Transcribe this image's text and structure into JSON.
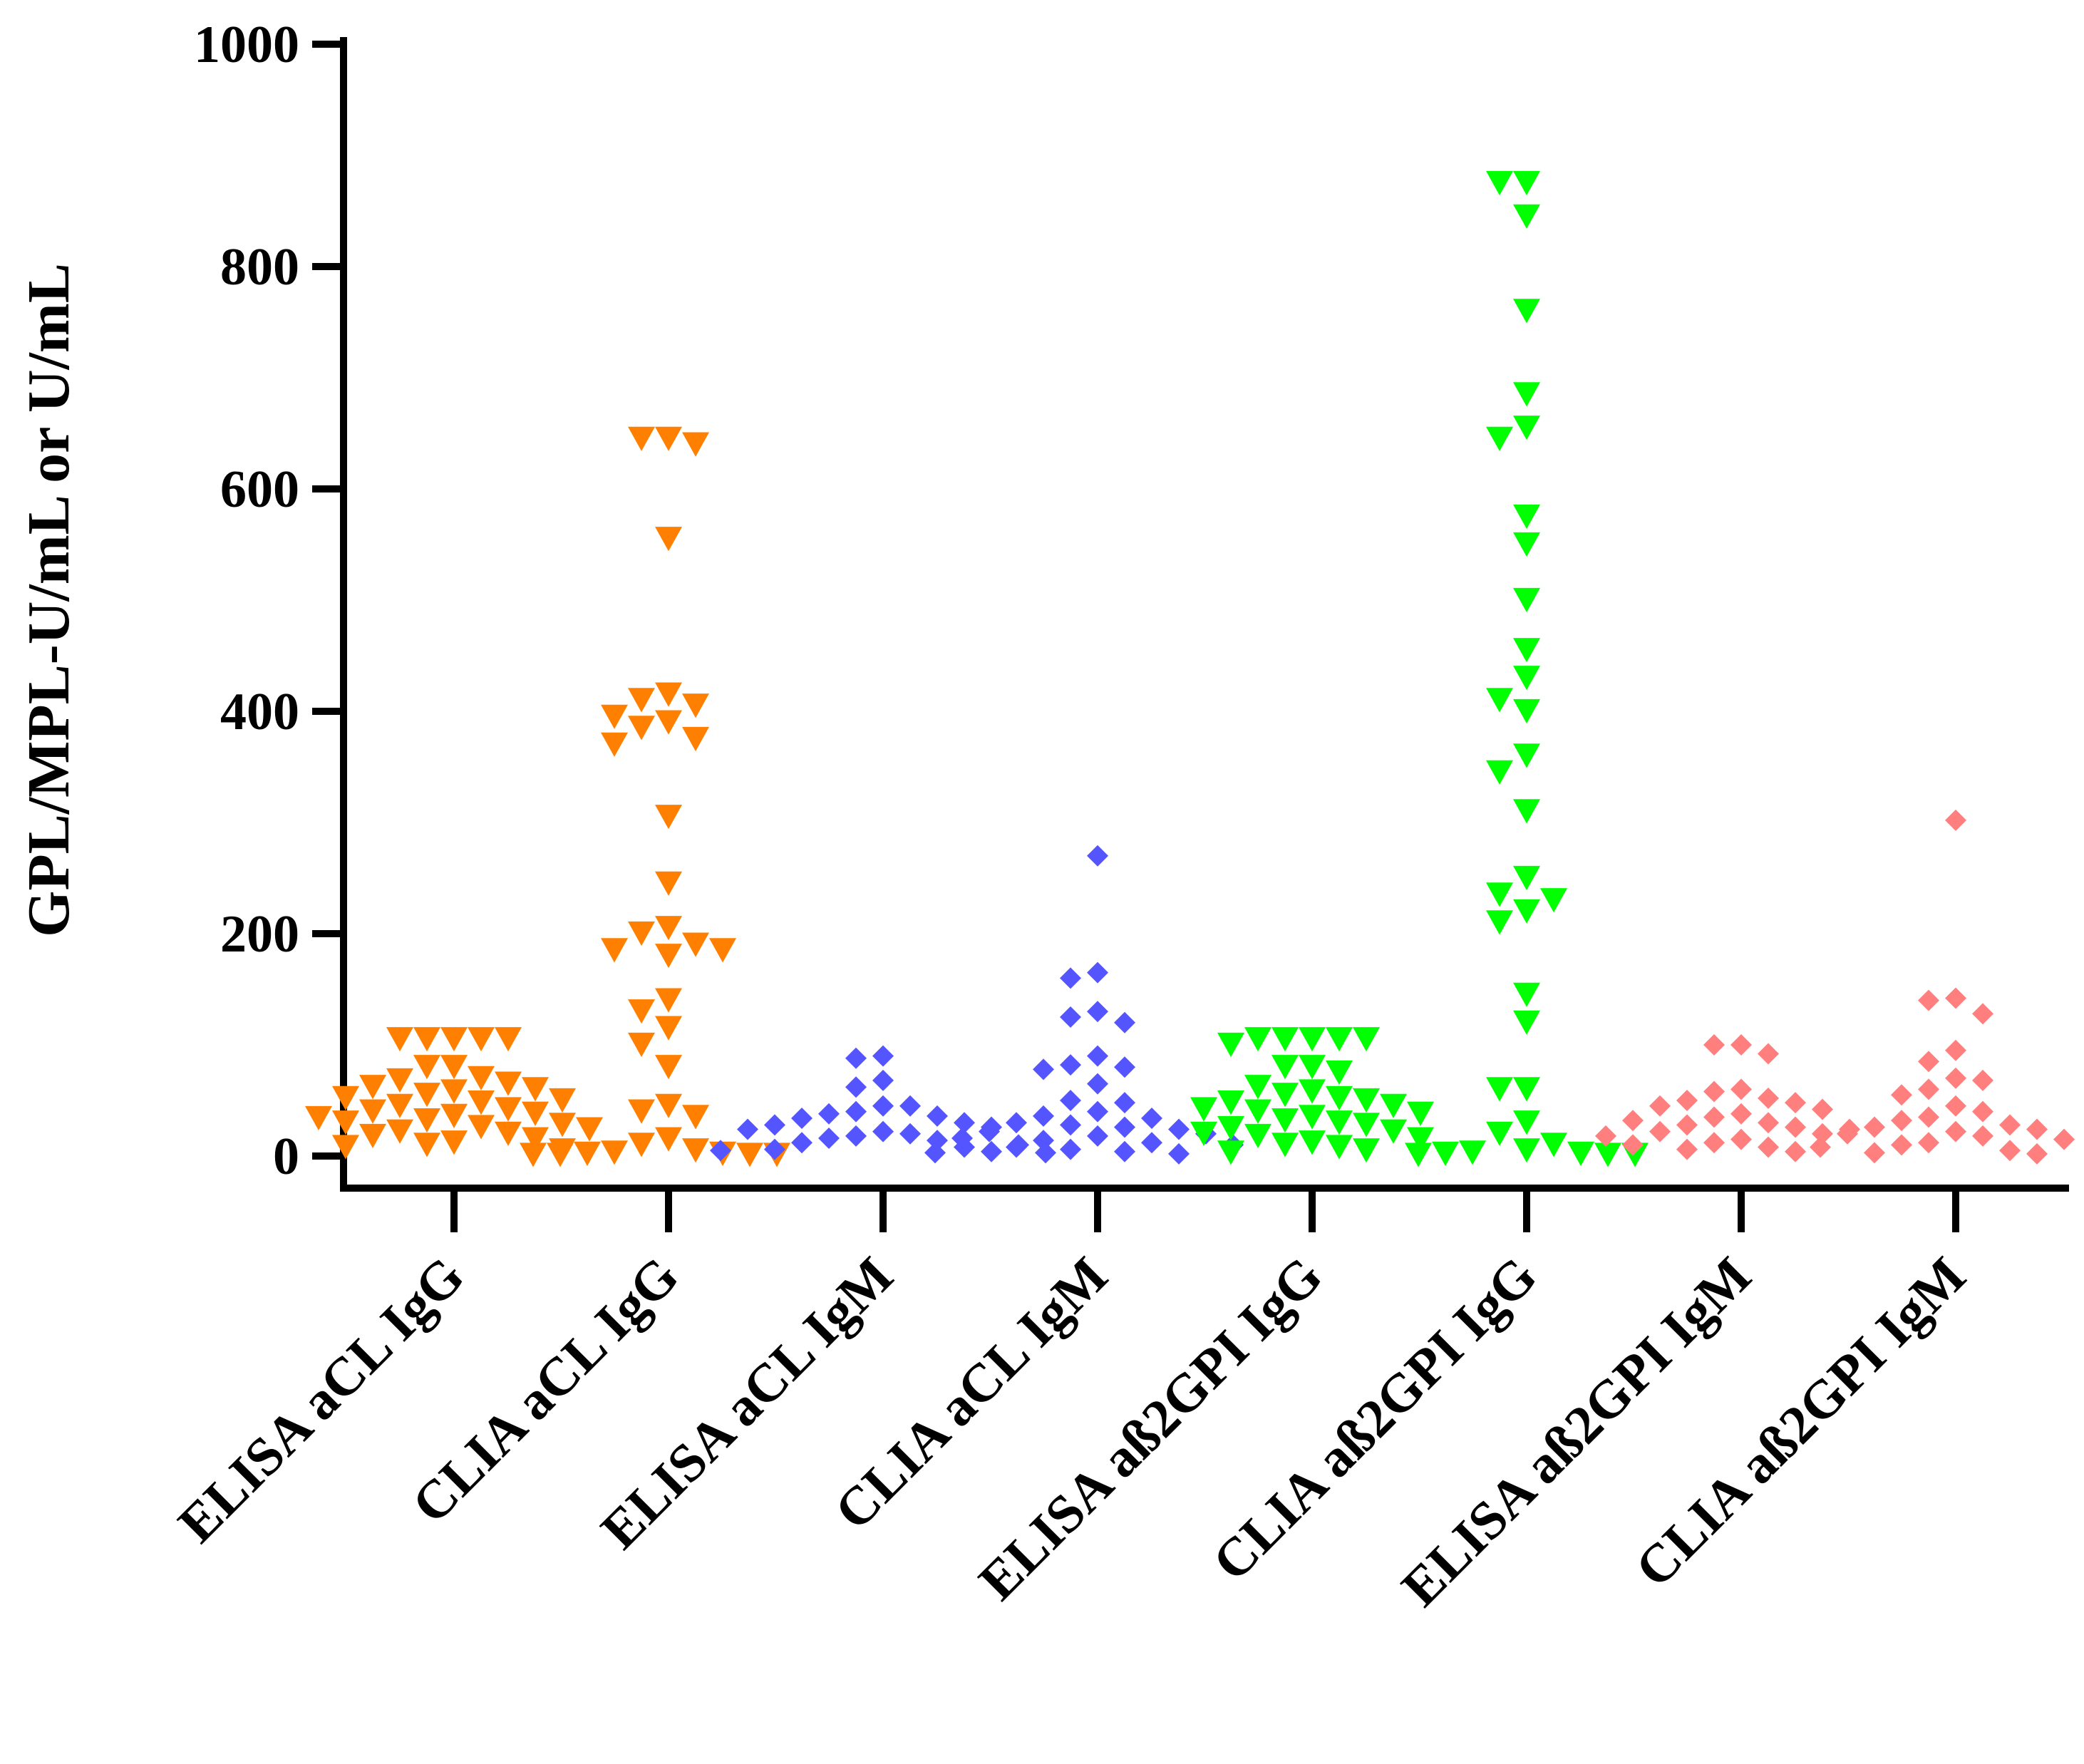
{
  "chart_data": {
    "type": "scatter",
    "title": "",
    "xlabel": "",
    "ylabel": "GPL/MPL-U/mL or U/mL",
    "ylim": [
      0,
      1000
    ],
    "yticks": [
      0,
      200,
      400,
      600,
      800,
      1000
    ],
    "grid": false,
    "categories": [
      "ELISA aCL IgG",
      "CLIA aCL IgG",
      "ELISA aCL IgM",
      "CLIA aCL IgM",
      "ELISA aß2GPI IgG",
      "CLIA aß2GPI IgG",
      "ELISA aß2GPI IgM",
      "CLIA aß2GPI IgM"
    ],
    "series": [
      {
        "name": "ELISA aCL IgG",
        "marker": "triangle-down",
        "color": "#ff8000",
        "values": [
          105,
          105,
          105,
          105,
          105,
          80,
          80,
          70,
          68,
          65,
          62,
          60,
          58,
          55,
          52,
          50,
          48,
          45,
          42,
          40,
          38,
          36,
          34,
          32,
          30,
          28,
          26,
          24,
          22,
          20,
          18,
          15,
          12,
          10,
          8,
          5
        ]
      },
      {
        "name": "CLIA aCL IgG",
        "marker": "triangle-down",
        "color": "#ff8000",
        "values": [
          645,
          640,
          645,
          555,
          410,
          415,
          405,
          395,
          390,
          385,
          375,
          370,
          305,
          245,
          205,
          200,
          190,
          185,
          180,
          185,
          140,
          130,
          115,
          100,
          80,
          45,
          40,
          35,
          15,
          10,
          5,
          3,
          2,
          2,
          1,
          1,
          1,
          1
        ]
      },
      {
        "name": "ELISA aCL IgM",
        "marker": "diamond",
        "color": "#5555ff",
        "values": [
          88,
          90,
          68,
          62,
          45,
          45,
          40,
          38,
          36,
          34,
          30,
          28,
          26,
          24,
          22,
          20,
          18,
          16,
          14,
          12,
          10,
          8,
          6,
          5,
          4,
          3
        ]
      },
      {
        "name": "CLIA aCL IgM",
        "marker": "diamond",
        "color": "#5555ff",
        "values": [
          270,
          165,
          160,
          130,
          125,
          120,
          90,
          82,
          80,
          78,
          65,
          50,
          48,
          40,
          36,
          34,
          30,
          28,
          26,
          24,
          22,
          20,
          18,
          16,
          14,
          12,
          10,
          8,
          6,
          4,
          3,
          2
        ]
      },
      {
        "name": "ELISA aß2GPI IgG",
        "marker": "triangle-down",
        "color": "#00ff00",
        "values": [
          105,
          105,
          105,
          105,
          105,
          100,
          80,
          80,
          75,
          62,
          58,
          55,
          52,
          50,
          48,
          45,
          42,
          40,
          38,
          35,
          32,
          30,
          28,
          25,
          22,
          20,
          18,
          15,
          12,
          10,
          8,
          5,
          3
        ]
      },
      {
        "name": "CLIA aß2GPI IgG",
        "marker": "triangle-down",
        "color": "#00ff00",
        "values": [
          875,
          875,
          845,
          760,
          685,
          655,
          645,
          575,
          550,
          500,
          455,
          430,
          410,
          400,
          360,
          345,
          310,
          250,
          235,
          230,
          220,
          210,
          145,
          120,
          60,
          60,
          30,
          20,
          10,
          5,
          3,
          2,
          2,
          1,
          1,
          1
        ]
      },
      {
        "name": "ELISA aß2GPI IgM",
        "marker": "diamond",
        "color": "#ff7f7f",
        "values": [
          100,
          100,
          92,
          60,
          58,
          52,
          50,
          48,
          45,
          42,
          38,
          35,
          32,
          30,
          28,
          26,
          24,
          22,
          20,
          18,
          15,
          12,
          10,
          8,
          6,
          4
        ]
      },
      {
        "name": "CLIA aß2GPI IgM",
        "marker": "diamond",
        "color": "#ff7f7f",
        "values": [
          302,
          142,
          140,
          128,
          95,
          85,
          70,
          68,
          60,
          55,
          45,
          40,
          35,
          32,
          28,
          26,
          24,
          22,
          20,
          18,
          15,
          12,
          10,
          8,
          5,
          3,
          2
        ]
      }
    ]
  }
}
